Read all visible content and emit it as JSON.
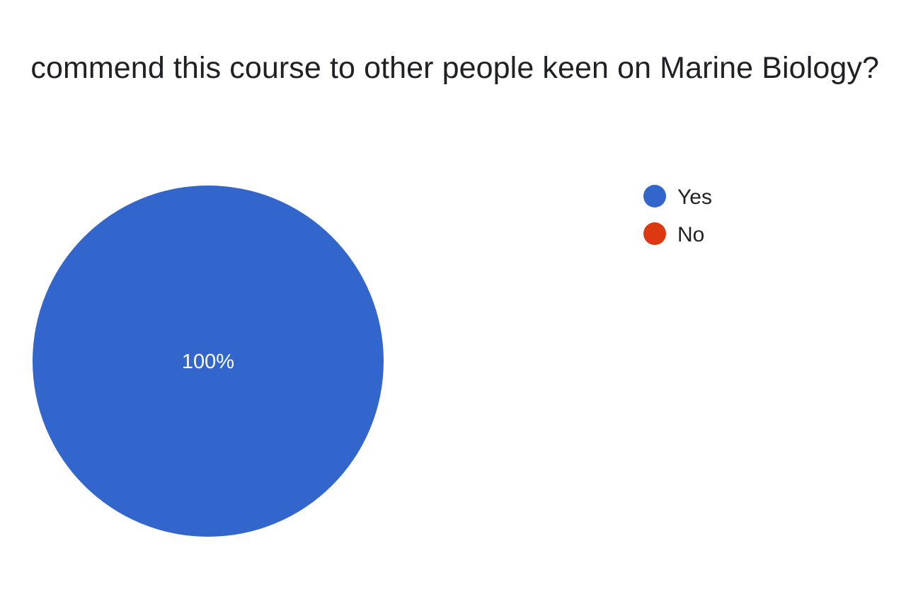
{
  "chart_data": {
    "type": "pie",
    "title": "commend this course to other people keen on Marine Biology?",
    "categories": [
      "Yes",
      "No"
    ],
    "values": [
      100,
      0
    ],
    "value_labels": [
      "100%",
      ""
    ],
    "colors": [
      "#3366cc",
      "#dc3912"
    ],
    "legend": {
      "position": "right",
      "entries": [
        "Yes",
        "No"
      ]
    }
  }
}
